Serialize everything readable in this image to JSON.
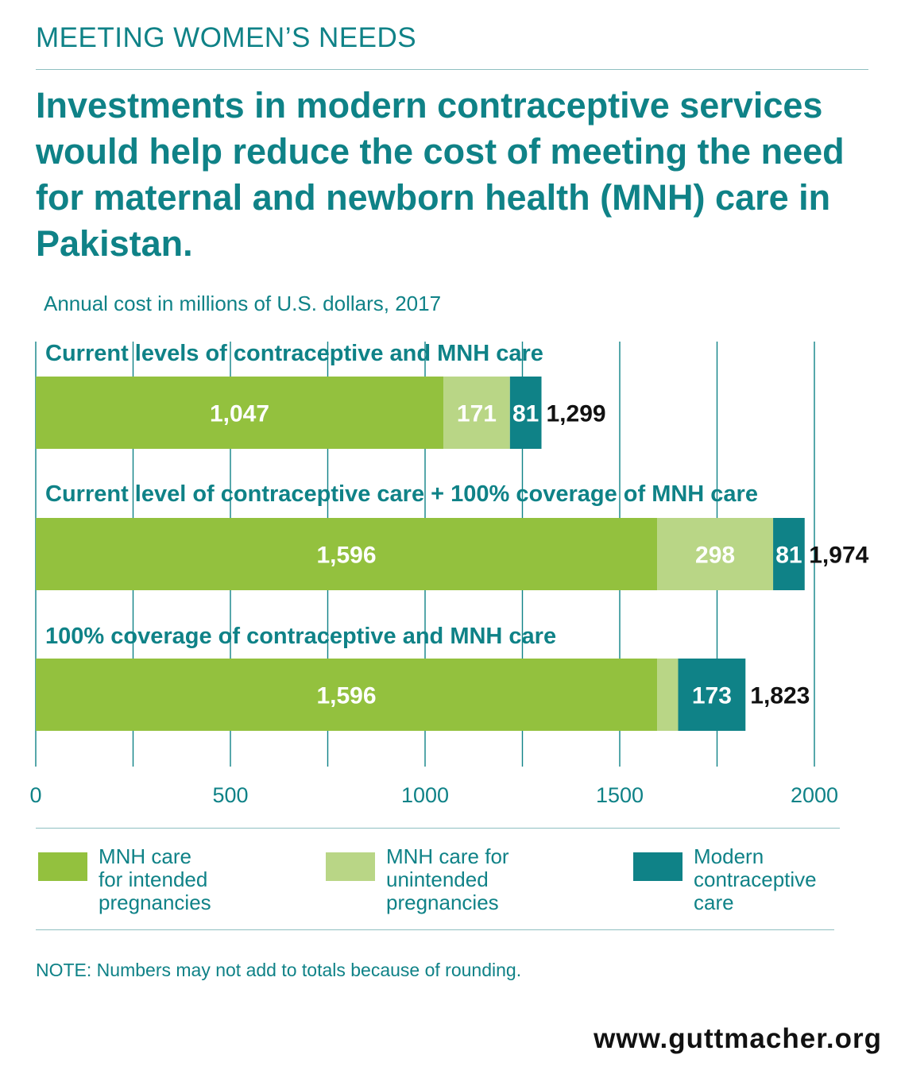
{
  "header": {
    "kicker": "MEETING WOMEN’S NEEDS",
    "headline": "Investments in modern contraceptive services would help reduce the cost of meeting the need for maternal and newborn health (MNH) care in Pakistan."
  },
  "colors": {
    "accent": "#0f8287",
    "mnh_intended": "#93c13e",
    "mnh_unintended": "#b9d686",
    "contraceptive": "#0f8287"
  },
  "chart_data": {
    "type": "bar",
    "orientation": "horizontal",
    "stacked": true,
    "subtitle": "Annual cost in millions of U.S. dollars, 2017",
    "xlim": [
      0,
      2000
    ],
    "xticks": [
      0,
      500,
      1000,
      1500,
      2000
    ],
    "xtick_labels": [
      "0",
      "500",
      "1000",
      "1500",
      "2000"
    ],
    "grid": true,
    "categories": [
      "Current levels of contraceptive and MNH care",
      "Current level of contraceptive care + 100% coverage of MNH care",
      "100% coverage of contraceptive and MNH care"
    ],
    "series": [
      {
        "name": "MNH care for intended pregnancies",
        "values": [
          1047,
          1596,
          1596
        ],
        "labels": [
          "1,047",
          "1,596",
          "1,596"
        ]
      },
      {
        "name": "MNH care for unintended pregnancies",
        "values": [
          171,
          298,
          54
        ],
        "labels": [
          "171",
          "298",
          ""
        ]
      },
      {
        "name": "Modern contraceptive care",
        "values": [
          81,
          81,
          173
        ],
        "labels": [
          "81",
          "81",
          "173"
        ]
      }
    ],
    "totals": [
      1299,
      1974,
      1823
    ],
    "total_labels": [
      "1,299",
      "1,974",
      "1,823"
    ],
    "legend_position": "bottom"
  },
  "legend": [
    {
      "lines": [
        "MNH care",
        "for intended",
        "pregnancies"
      ]
    },
    {
      "lines": [
        "MNH care for",
        "unintended",
        "pregnancies"
      ]
    },
    {
      "lines": [
        "Modern",
        "contraceptive",
        "care"
      ]
    }
  ],
  "footer": {
    "note": "NOTE: Numbers may not add to totals because of rounding.",
    "url": "www.guttmacher.org"
  }
}
